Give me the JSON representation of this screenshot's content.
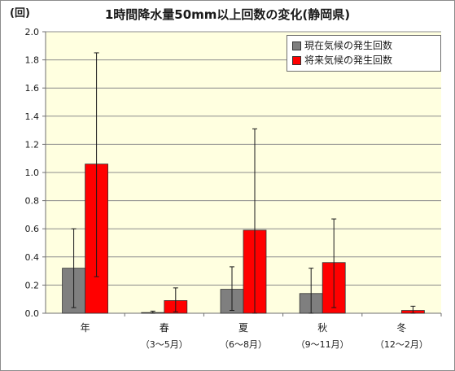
{
  "chart_data": {
    "type": "bar",
    "title": "1時間降水量50mm以上回数の変化(静岡県)",
    "ylabel": "(回)",
    "ylim": [
      0,
      2.0
    ],
    "yticks": [
      "0.0",
      "0.2",
      "0.4",
      "0.6",
      "0.8",
      "1.0",
      "1.2",
      "1.4",
      "1.6",
      "1.8",
      "2.0"
    ],
    "categories": [
      {
        "label": "年",
        "sublabel": ""
      },
      {
        "label": "春",
        "sublabel": "（3～5月）"
      },
      {
        "label": "夏",
        "sublabel": "（6～8月）"
      },
      {
        "label": "秋",
        "sublabel": "（9～11月）"
      },
      {
        "label": "冬",
        "sublabel": "（12～2月）"
      }
    ],
    "series": [
      {
        "name": "現在気候の発生回数",
        "color": "#7f7f7f",
        "values": [
          0.32,
          0.005,
          0.17,
          0.14,
          0.0
        ],
        "err_low": [
          0.04,
          0.0,
          0.02,
          0.0,
          0.0
        ],
        "err_high": [
          0.6,
          0.015,
          0.33,
          0.32,
          0.0
        ]
      },
      {
        "name": "将来気候の発生回数",
        "color": "#ff0000",
        "values": [
          1.06,
          0.09,
          0.59,
          0.36,
          0.02
        ],
        "err_low": [
          0.26,
          0.01,
          0.0,
          0.04,
          0.0
        ],
        "err_high": [
          1.85,
          0.18,
          1.31,
          0.67,
          0.05
        ]
      }
    ],
    "grid": true,
    "legend_position": "top-right",
    "plot_background": "#ffffe0"
  }
}
